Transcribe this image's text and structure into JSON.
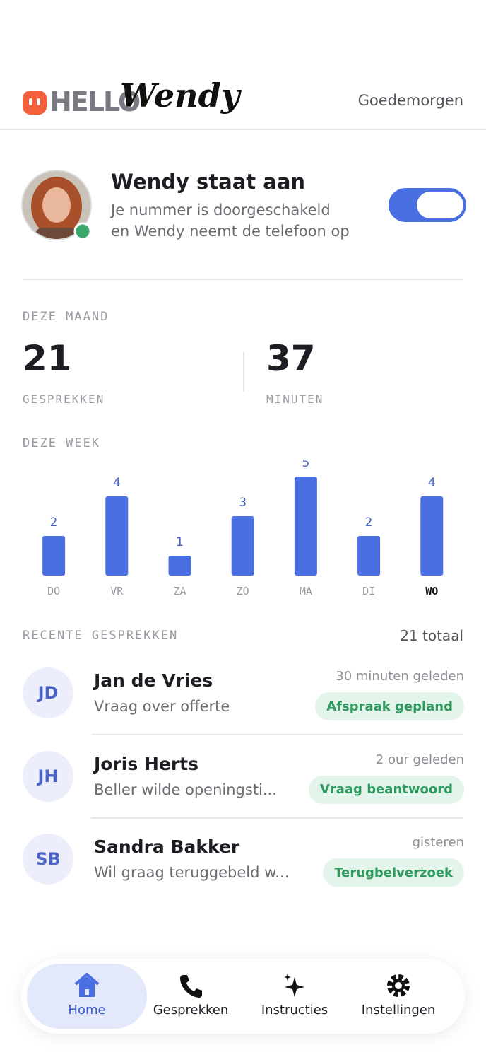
{
  "header": {
    "logo_prefix": "HELLO",
    "logo_name": "Wendy",
    "greeting": "Goedemorgen"
  },
  "status": {
    "title": "Wendy staat aan",
    "line1": "Je nummer is doorgeschakeld",
    "line2": "en Wendy neemt de telefoon op",
    "enabled": true
  },
  "month": {
    "label": "DEZE MAAND",
    "stats": [
      {
        "value": 21,
        "label": "GESPREKKEN"
      },
      {
        "value": 37,
        "label": "MINUTEN"
      }
    ]
  },
  "chart_data": {
    "type": "bar",
    "title": "DEZE WEEK",
    "categories": [
      "DO",
      "VR",
      "ZA",
      "ZO",
      "MA",
      "DI",
      "WO"
    ],
    "values": [
      2,
      4,
      1,
      3,
      5,
      2,
      4
    ],
    "color": "#4a6fe3"
  },
  "recent": {
    "title": "RECENTE GESPREKKEN",
    "total": "21 totaal",
    "items": [
      {
        "initials": "JD",
        "name": "Jan de Vries",
        "subject": "Vraag over offerte",
        "time": "30 minuten geleden",
        "tag": "Afspraak gepland"
      },
      {
        "initials": "JH",
        "name": "Joris Herts",
        "subject": "Beller wilde openingsti...",
        "time": "2 our geleden",
        "tag": "Vraag beantwoord"
      },
      {
        "initials": "SB",
        "name": "Sandra Bakker",
        "subject": "Wil graag teruggebeld w...",
        "time": "gisteren",
        "tag": "Terugbelverzoek"
      }
    ]
  },
  "nav": {
    "items": [
      {
        "label": "Home"
      },
      {
        "label": "Gesprekken"
      },
      {
        "label": "Instructies"
      },
      {
        "label": "Instellingen"
      }
    ]
  }
}
